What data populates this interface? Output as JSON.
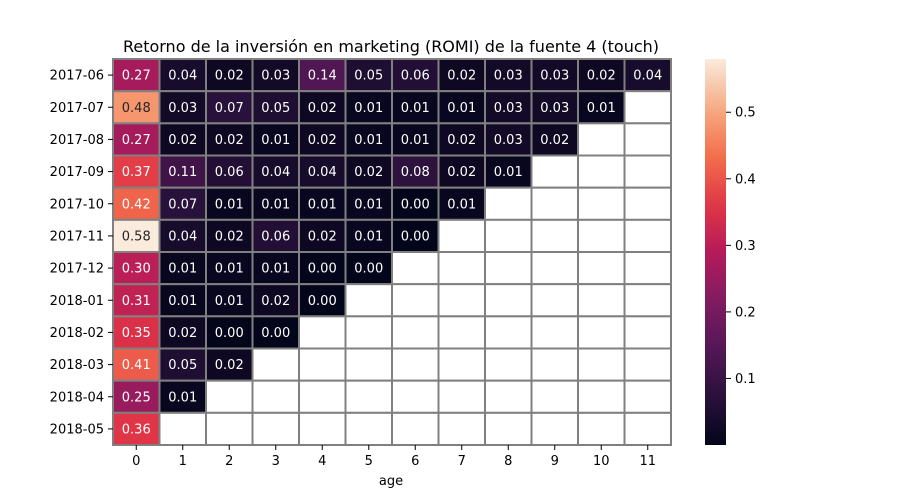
{
  "chart_data": {
    "type": "heatmap",
    "title": "Retorno de la inversión en marketing (ROMI) de la fuente 4 (touch)",
    "xlabel": "age",
    "ylabel": "",
    "x": [
      0,
      1,
      2,
      3,
      4,
      5,
      6,
      7,
      8,
      9,
      10,
      11
    ],
    "y": [
      "2017-06",
      "2017-07",
      "2017-08",
      "2017-09",
      "2017-10",
      "2017-11",
      "2017-12",
      "2018-01",
      "2018-02",
      "2018-03",
      "2018-04",
      "2018-05"
    ],
    "values": [
      [
        0.27,
        0.04,
        0.02,
        0.03,
        0.14,
        0.05,
        0.06,
        0.02,
        0.03,
        0.03,
        0.02,
        0.04
      ],
      [
        0.48,
        0.03,
        0.07,
        0.05,
        0.02,
        0.01,
        0.01,
        0.01,
        0.03,
        0.03,
        0.01,
        null
      ],
      [
        0.27,
        0.02,
        0.02,
        0.01,
        0.02,
        0.01,
        0.01,
        0.02,
        0.03,
        0.02,
        null,
        null
      ],
      [
        0.37,
        0.11,
        0.06,
        0.04,
        0.04,
        0.02,
        0.08,
        0.02,
        0.01,
        null,
        null,
        null
      ],
      [
        0.42,
        0.07,
        0.01,
        0.01,
        0.01,
        0.01,
        0.0,
        0.01,
        null,
        null,
        null,
        null
      ],
      [
        0.58,
        0.04,
        0.02,
        0.06,
        0.02,
        0.01,
        0.0,
        null,
        null,
        null,
        null,
        null
      ],
      [
        0.3,
        0.01,
        0.01,
        0.01,
        0.0,
        0.0,
        null,
        null,
        null,
        null,
        null,
        null
      ],
      [
        0.31,
        0.01,
        0.01,
        0.02,
        0.0,
        null,
        null,
        null,
        null,
        null,
        null,
        null
      ],
      [
        0.35,
        0.02,
        0.0,
        0.0,
        null,
        null,
        null,
        null,
        null,
        null,
        null,
        null
      ],
      [
        0.41,
        0.05,
        0.02,
        null,
        null,
        null,
        null,
        null,
        null,
        null,
        null,
        null
      ],
      [
        0.25,
        0.01,
        null,
        null,
        null,
        null,
        null,
        null,
        null,
        null,
        null,
        null
      ],
      [
        0.36,
        null,
        null,
        null,
        null,
        null,
        null,
        null,
        null,
        null,
        null,
        null
      ]
    ],
    "colorbar": {
      "range": [
        0.0,
        0.58
      ],
      "ticks": [
        0.1,
        0.2,
        0.3,
        0.4,
        0.5
      ]
    },
    "colormap": "rocket",
    "cell_border_color": "#808080",
    "empty_cell_color": "#ffffff"
  }
}
